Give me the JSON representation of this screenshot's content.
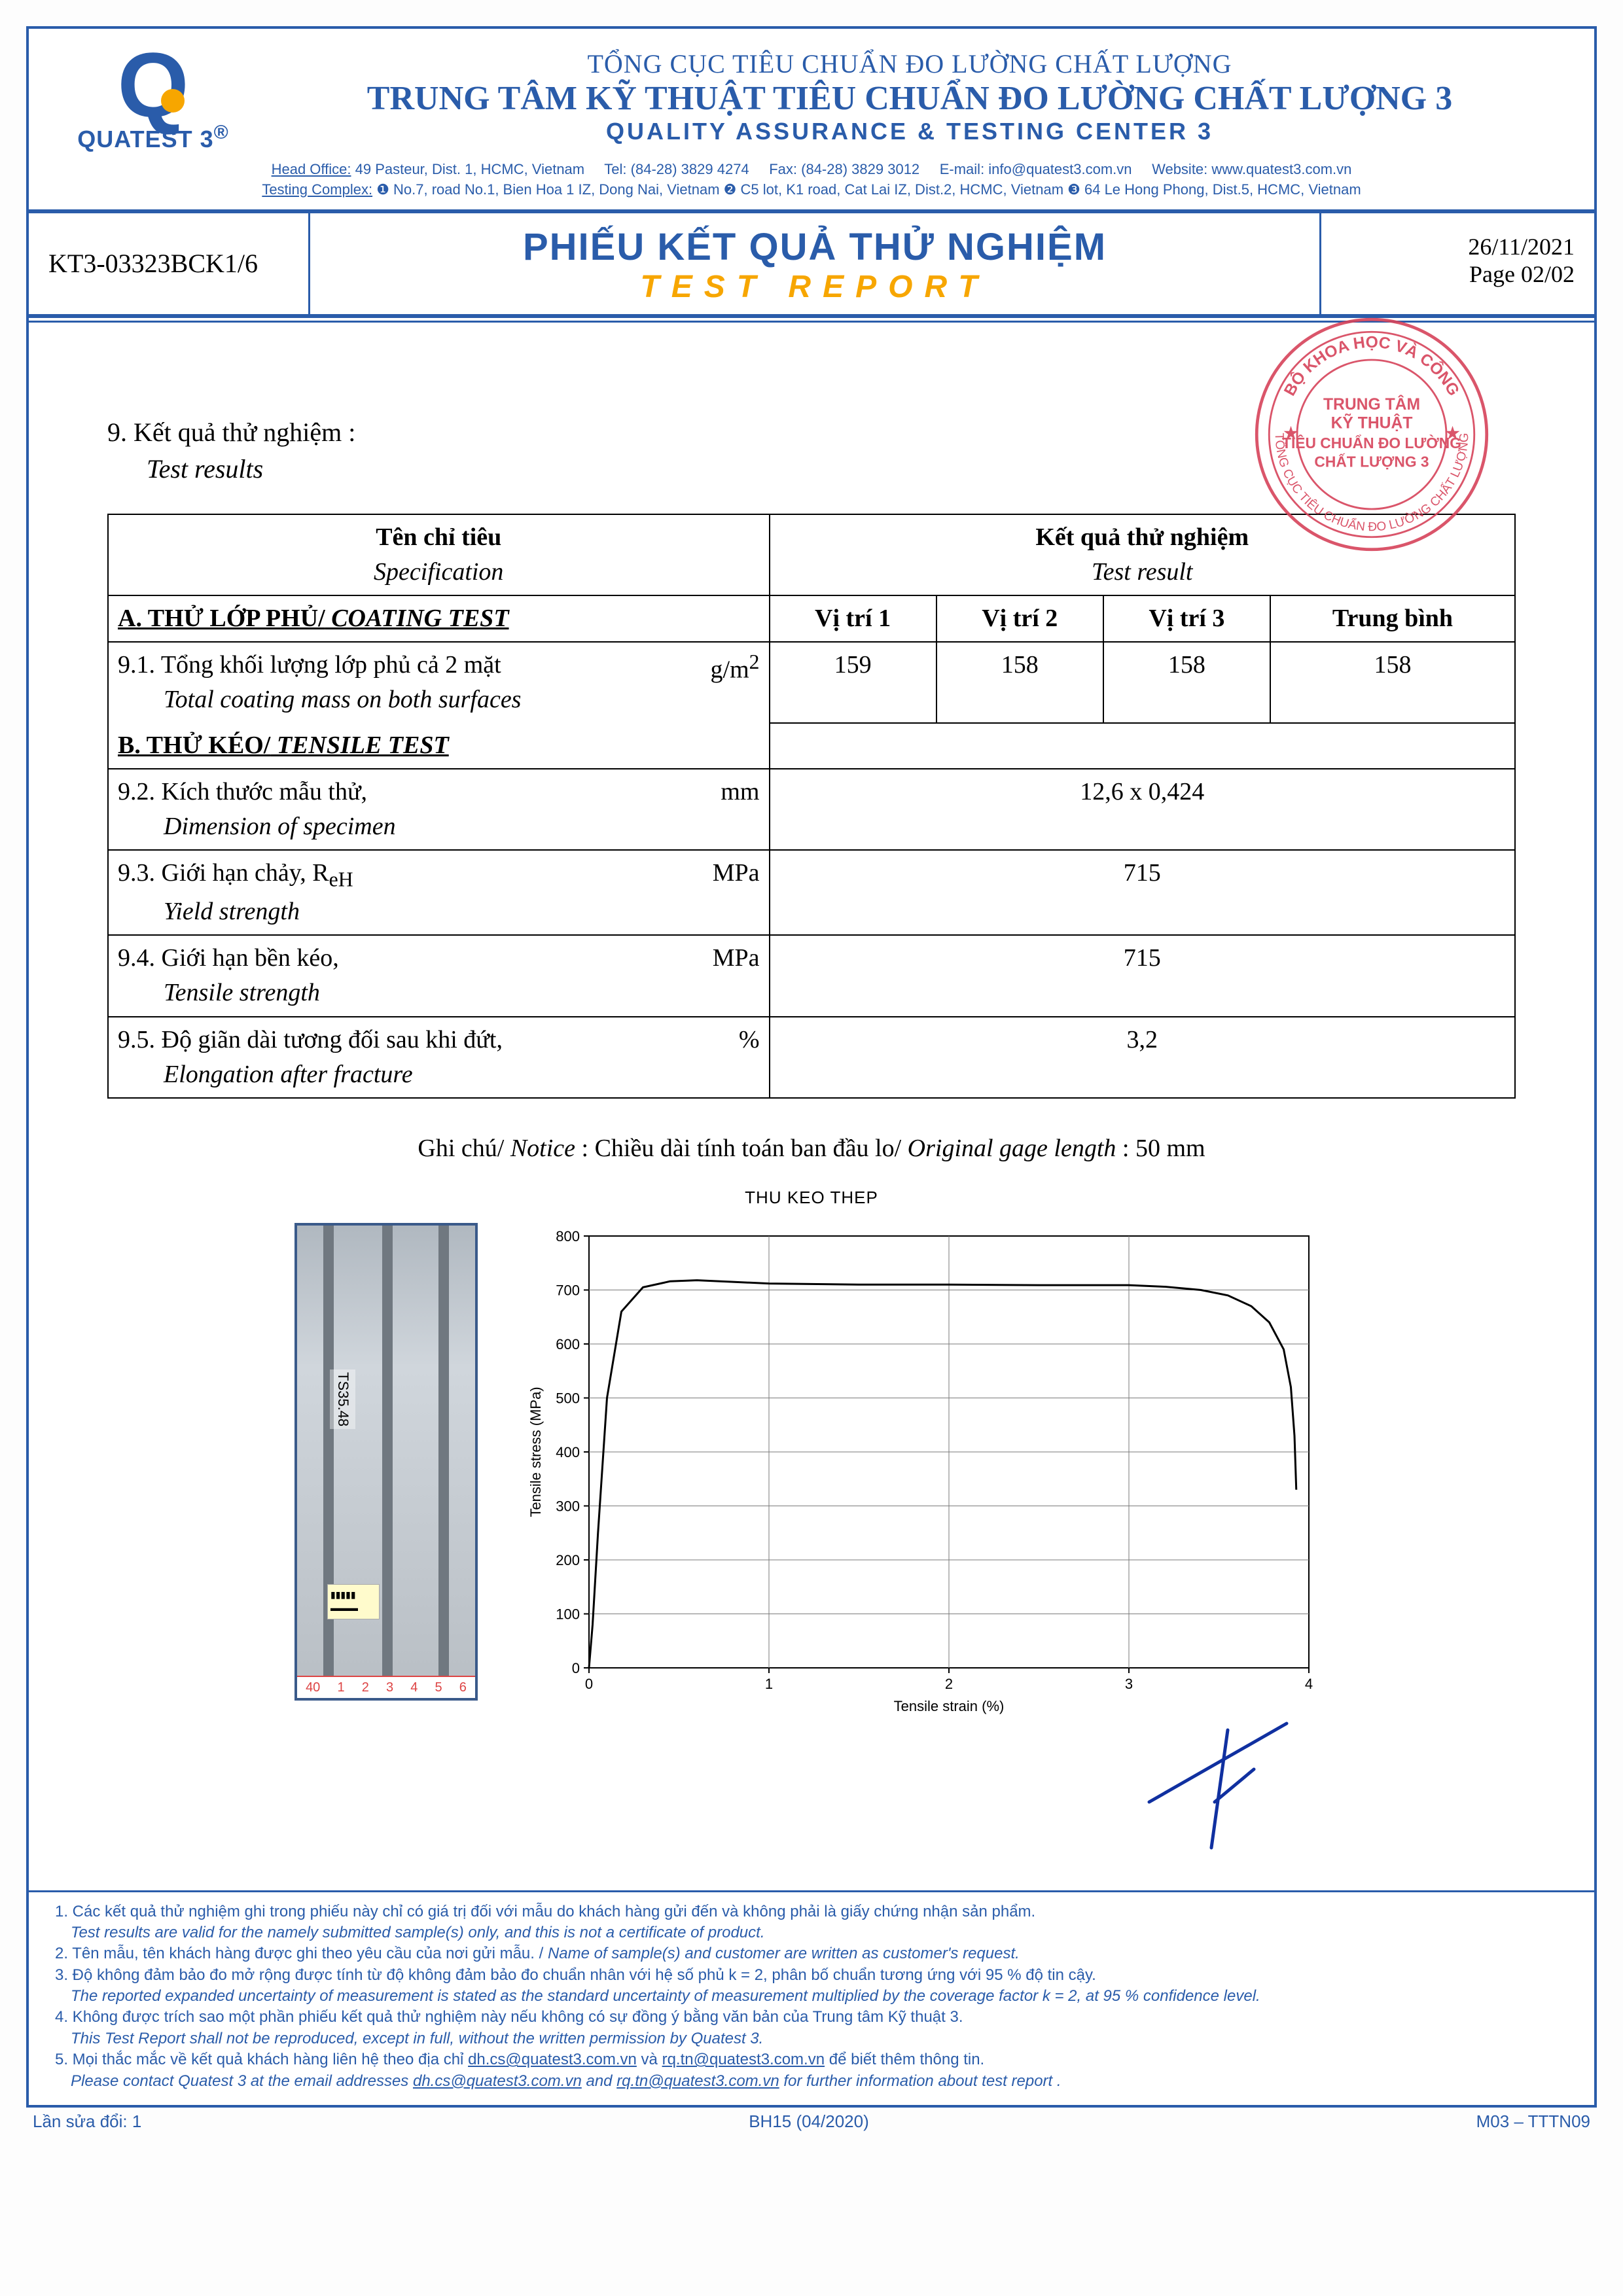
{
  "org": {
    "line1": "TỔNG CỤC TIÊU CHUẨN ĐO LƯỜNG CHẤT LƯỢNG",
    "line2": "TRUNG TÂM KỸ THUẬT TIÊU CHUẨN ĐO LƯỜNG CHẤT LƯỢNG 3",
    "line3": "QUALITY ASSURANCE & TESTING CENTER 3",
    "brand": "QUATEST 3",
    "brand_sup": "®"
  },
  "addr": {
    "head_label": "Head Office:",
    "head": "49 Pasteur, Dist. 1, HCMC, Vietnam",
    "tel": "Tel: (84-28) 3829 4274",
    "fax": "Fax: (84-28)  3829 3012",
    "email": "E-mail: info@quatest3.com.vn",
    "web": "Website: www.quatest3.com.vn",
    "tc_label": "Testing Complex:",
    "tc1": "❶ No.7, road No.1, Bien Hoa 1 IZ, Dong Nai, Vietnam ❷ C5 lot, K1 road, Cat Lai IZ, Dist.2, HCMC, Vietnam ❸ 64 Le Hong Phong, Dist.5, HCMC, Vietnam"
  },
  "titlebar": {
    "left_code": "KT3-03323BCK1/6",
    "title_vi": "PHIẾU KẾT QUẢ THỬ NGHIỆM",
    "title_en": "TEST REPORT",
    "date": "26/11/2021",
    "page": "Page 02/02"
  },
  "stamp": {
    "outer1": "BỘ KHOA HỌC VÀ CÔNG",
    "outer2": "TỔNG CỤC TIÊU CHUẨN ĐO LƯỜNG CHẤT LƯỢNG",
    "inner1": "TRUNG TÂM",
    "inner2": "KỸ THUẬT",
    "inner3": "TIÊU CHUẨN ĐO LƯỜNG",
    "inner4": "CHẤT LƯỢNG 3"
  },
  "section9": {
    "num_title": "9. Kết quả thử nghiệm :",
    "num_title_en": "Test results"
  },
  "table": {
    "hd_spec_vi": "Tên chỉ tiêu",
    "hd_spec_en": "Specification",
    "hd_res_vi": "Kết quả thử nghiệm",
    "hd_res_en": "Test result",
    "catA": "A. THỬ LỚP PHỦ/",
    "catA_it": " COATING TEST",
    "colP1": "Vị trí 1",
    "colP2": "Vị trí 2",
    "colP3": "Vị trí 3",
    "colAvg": "Trung bình",
    "r91_label": "9.1. Tổng khối lượng lớp phủ cả 2 mặt",
    "r91_unit": "g/m",
    "r91_unit_sup": "2",
    "r91_sub": "Total coating mass on both surfaces",
    "r91_p1": "159",
    "r91_p2": "158",
    "r91_p3": "158",
    "r91_avg": "158",
    "catB": "B. THỬ KÉO/",
    "catB_it": " TENSILE TEST",
    "r92_label": "9.2. Kích thước mẫu thử,",
    "r92_unit": "mm",
    "r92_sub": "Dimension of specimen",
    "r92_val": "12,6 x 0,424",
    "r93_label": "9.3. Giới hạn chảy, R",
    "r93_subscript": "eH",
    "r93_unit": "MPa",
    "r93_sub": "Yield strength",
    "r93_val": "715",
    "r94_label": "9.4. Giới hạn bền kéo,",
    "r94_unit": "MPa",
    "r94_sub": "Tensile strength",
    "r94_val": "715",
    "r95_label": "9.5. Độ giãn dài tương đối sau khi đứt,",
    "r95_unit": "%",
    "r95_sub": "Elongation after fracture",
    "r95_val": "3,2"
  },
  "notice": {
    "pre": "Ghi chú/",
    "pre_it": " Notice ",
    "txt": ": Chiều dài tính toán ban đầu lo/",
    "txt_it": " Original gage length",
    "tail": " : 50 mm"
  },
  "chart": {
    "title": "THU KEO THEP",
    "xlabel": "Tensile strain (%)",
    "ylabel": "Tensile stress (MPa)",
    "xlim": [
      0,
      4
    ],
    "ylim": [
      0,
      800
    ],
    "xtick_step": 1,
    "ytick_step": 100,
    "bg": "#ffffff",
    "grid_color": "#7a7a7a",
    "line_color": "#000000",
    "line_width": 3,
    "axis_fontsize": 22,
    "series": [
      [
        0.0,
        0
      ],
      [
        0.02,
        80
      ],
      [
        0.05,
        250
      ],
      [
        0.1,
        500
      ],
      [
        0.18,
        660
      ],
      [
        0.3,
        705
      ],
      [
        0.45,
        716
      ],
      [
        0.6,
        718
      ],
      [
        0.8,
        715
      ],
      [
        1.0,
        712
      ],
      [
        1.5,
        710
      ],
      [
        2.0,
        710
      ],
      [
        2.5,
        709
      ],
      [
        3.0,
        709
      ],
      [
        3.2,
        706
      ],
      [
        3.4,
        700
      ],
      [
        3.55,
        690
      ],
      [
        3.68,
        670
      ],
      [
        3.78,
        640
      ],
      [
        3.86,
        590
      ],
      [
        3.9,
        520
      ],
      [
        3.92,
        430
      ],
      [
        3.93,
        330
      ]
    ]
  },
  "photo": {
    "spec_label": "TS35.48",
    "ruler_marks": [
      "40",
      "1",
      "2",
      "3",
      "4",
      "5",
      "6"
    ]
  },
  "footnotes": {
    "n1": "1. Các kết quả thử nghiệm ghi trong phiếu này chỉ có giá trị đối với mẫu do khách hàng gửi đến và không phải là giấy chứng nhận sản phẩm.",
    "n1e": "Test results are valid for the namely submitted sample(s) only, and this is not a certificate of product.",
    "n2": "2. Tên mẫu, tên khách hàng được ghi theo yêu cầu của nơi gửi mẫu. /",
    "n2e": " Name of sample(s) and customer are written as customer's request.",
    "n3": "3. Độ không đảm bảo đo mở rộng được tính từ độ không đảm bảo đo chuẩn nhân với hệ số phủ k = 2, phân bố chuẩn tương ứng với 95 % độ tin cậy.",
    "n3e": "The reported expanded uncertainty of measurement is stated as the standard uncertainty of measurement multiplied by the coverage factor k = 2, at 95 % confidence level.",
    "n4": "4. Không được trích sao một phần phiếu kết quả thử nghiệm này nếu không có sự đồng ý bằng văn bản của Trung tâm Kỹ thuật 3.",
    "n4e": "This Test Report shall not be reproduced, except in full, without the written permission by Quatest 3.",
    "n5a": "5. Mọi thắc mắc về kết quả khách hàng liên hệ theo địa chỉ ",
    "mail1": "dh.cs@quatest3.com.vn",
    "n5b": " và ",
    "mail2": "rq.tn@quatest3.com.vn",
    "n5c": " để biết thêm thông tin.",
    "n5e_a": "Please contact Quatest 3 at the email addresses ",
    "n5e_b": " and ",
    "n5e_c": "  for further information about test report ."
  },
  "tail": {
    "left": "Lần sửa đổi: 1",
    "mid": "BH15 (04/2020)",
    "right": "M03 – TTTN09"
  }
}
